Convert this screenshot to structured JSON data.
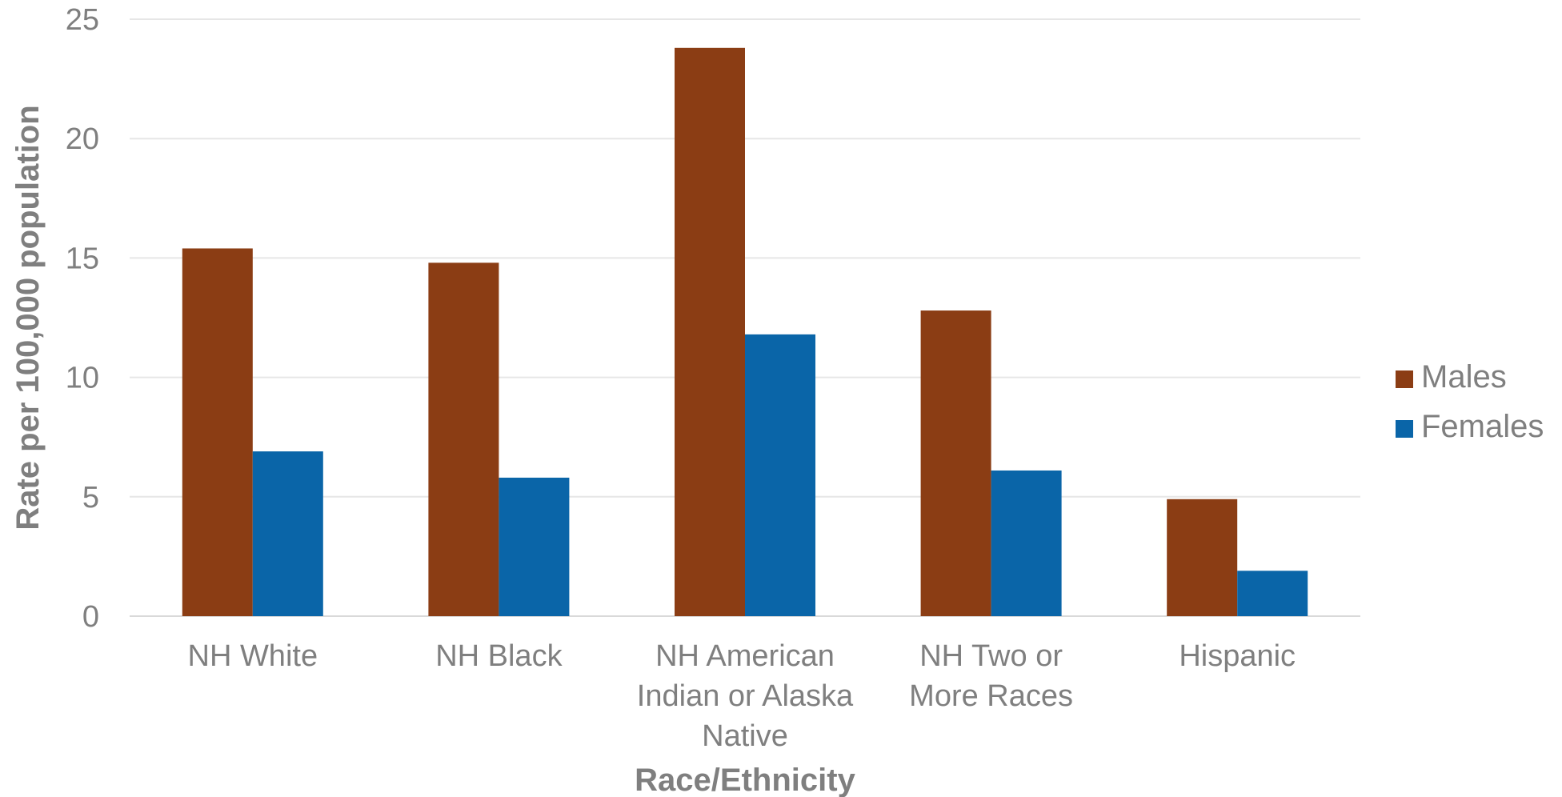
{
  "chart_data": {
    "type": "bar",
    "title": "",
    "xlabel": "Race/Ethnicity",
    "ylabel": "Rate per 100,000 population",
    "ylim": [
      0,
      25
    ],
    "yticks": [
      0,
      5,
      10,
      15,
      20,
      25
    ],
    "grid": true,
    "legend_position": "right",
    "categories": [
      [
        "NH White"
      ],
      [
        "NH Black"
      ],
      [
        "NH American",
        "Indian or Alaska",
        "Native"
      ],
      [
        "NH Two or",
        "More Races"
      ],
      [
        "Hispanic"
      ]
    ],
    "series": [
      {
        "name": "Males",
        "color": "#8b3d14",
        "values": [
          15.4,
          14.8,
          23.8,
          12.8,
          4.9
        ]
      },
      {
        "name": "Females",
        "color": "#0a65a8",
        "values": [
          6.9,
          5.8,
          11.8,
          6.1,
          1.9
        ]
      }
    ]
  }
}
